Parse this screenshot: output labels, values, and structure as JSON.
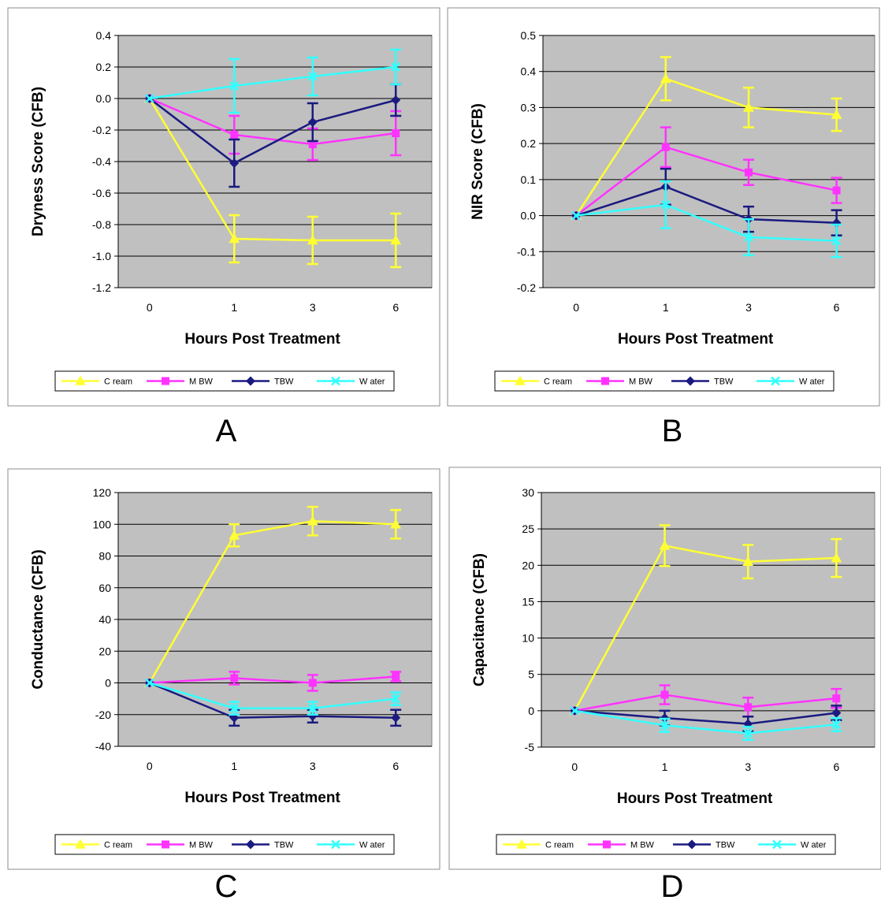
{
  "legend_entries": [
    "C ream",
    "M BW",
    "TBW",
    "W ater"
  ],
  "series_styles": [
    {
      "color": "#ffff33",
      "marker": "triangle"
    },
    {
      "color": "#ff33ff",
      "marker": "square"
    },
    {
      "color": "#1a1a80",
      "marker": "diamond"
    },
    {
      "color": "#33ffff",
      "marker": "x"
    }
  ],
  "plot_background": "#c0c0c0",
  "chart_data": [
    {
      "type": "line",
      "panel_label": "A",
      "xlabel": "Hours Post Treatment",
      "ylabel": "Dryness Score (CFB)",
      "x": [
        "0",
        "1",
        "3",
        "6"
      ],
      "ylim": [
        -1.2,
        0.4
      ],
      "yticks": [
        0.4,
        0.2,
        0.0,
        -0.2,
        -0.4,
        -0.6,
        -0.8,
        -1.0,
        -1.2
      ],
      "ytick_labels": [
        "0.4",
        "0.2",
        "0.0",
        "-0.2",
        "-0.4",
        "-0.6",
        "-0.8",
        "-1.0",
        "-1.2"
      ],
      "grid": true,
      "legend": "bottom",
      "series": [
        {
          "name": "C ream",
          "values": [
            0,
            -0.89,
            -0.9,
            -0.9
          ],
          "error": [
            0,
            0.15,
            0.15,
            0.17
          ]
        },
        {
          "name": "M BW",
          "values": [
            0,
            -0.23,
            -0.29,
            -0.22
          ],
          "error": [
            0,
            0.12,
            0.1,
            0.14
          ]
        },
        {
          "name": "TBW",
          "values": [
            0,
            -0.41,
            -0.15,
            -0.01
          ],
          "error": [
            0,
            0.15,
            0.12,
            0.1
          ]
        },
        {
          "name": "W ater",
          "values": [
            0,
            0.08,
            0.14,
            0.2
          ],
          "error": [
            0,
            0.17,
            0.12,
            0.11
          ]
        }
      ]
    },
    {
      "type": "line",
      "panel_label": "B",
      "xlabel": "Hours Post Treatment",
      "ylabel": "NIR Score (CFB)",
      "x": [
        "0",
        "1",
        "3",
        "6"
      ],
      "ylim": [
        -0.2,
        0.5
      ],
      "yticks": [
        0.5,
        0.4,
        0.3,
        0.2,
        0.1,
        0.0,
        -0.1,
        -0.2
      ],
      "ytick_labels": [
        "0.5",
        "0.4",
        "0.3",
        "0.2",
        "0.1",
        "0.0",
        "-0.1",
        "-0.2"
      ],
      "grid": true,
      "legend": "bottom",
      "series": [
        {
          "name": "C ream",
          "values": [
            0,
            0.38,
            0.3,
            0.28
          ],
          "error": [
            0,
            0.06,
            0.055,
            0.045
          ]
        },
        {
          "name": "M BW",
          "values": [
            0,
            0.19,
            0.12,
            0.07
          ],
          "error": [
            0,
            0.055,
            0.035,
            0.035
          ]
        },
        {
          "name": "TBW",
          "values": [
            0,
            0.08,
            -0.01,
            -0.02
          ],
          "error": [
            0,
            0.05,
            0.035,
            0.035
          ]
        },
        {
          "name": "W ater",
          "values": [
            0,
            0.03,
            -0.06,
            -0.07
          ],
          "error": [
            0,
            0.065,
            0.05,
            0.045
          ]
        }
      ]
    },
    {
      "type": "line",
      "panel_label": "C",
      "xlabel": "Hours Post Treatment",
      "ylabel": "Conductance (CFB)",
      "x": [
        "0",
        "1",
        "3",
        "6"
      ],
      "ylim": [
        -40,
        120
      ],
      "yticks": [
        120,
        100,
        80,
        60,
        40,
        20,
        0,
        -20,
        -40
      ],
      "ytick_labels": [
        "120",
        "100",
        "80",
        "60",
        "40",
        "20",
        "0",
        "-20",
        "-40"
      ],
      "grid": true,
      "legend": "bottom",
      "series": [
        {
          "name": "C ream",
          "values": [
            0,
            93,
            102,
            100
          ],
          "error": [
            0,
            7,
            9,
            9
          ]
        },
        {
          "name": "M BW",
          "values": [
            0,
            3,
            0,
            4
          ],
          "error": [
            0,
            4,
            5,
            3
          ]
        },
        {
          "name": "TBW",
          "values": [
            0,
            -22,
            -21,
            -22
          ],
          "error": [
            0,
            5,
            4,
            5
          ]
        },
        {
          "name": "W ater",
          "values": [
            0,
            -16,
            -16,
            -10
          ],
          "error": [
            0,
            4,
            4,
            4
          ]
        }
      ]
    },
    {
      "type": "line",
      "panel_label": "D",
      "xlabel": "Hours Post Treatment",
      "ylabel": "Capacitance (CFB)",
      "x": [
        "0",
        "1",
        "3",
        "6"
      ],
      "ylim": [
        -5,
        30
      ],
      "yticks": [
        30,
        25,
        20,
        15,
        10,
        5,
        0,
        -5
      ],
      "ytick_labels": [
        "30",
        "25",
        "20",
        "15",
        "10",
        "5",
        "0",
        "-5"
      ],
      "grid": true,
      "legend": "bottom",
      "series": [
        {
          "name": "C ream",
          "values": [
            0,
            22.7,
            20.5,
            21.0
          ],
          "error": [
            0,
            2.8,
            2.3,
            2.6
          ]
        },
        {
          "name": "M BW",
          "values": [
            0,
            2.2,
            0.5,
            1.7
          ],
          "error": [
            0,
            1.3,
            1.3,
            1.3
          ]
        },
        {
          "name": "TBW",
          "values": [
            0,
            -1.0,
            -1.8,
            -0.3
          ],
          "error": [
            0,
            1.0,
            1.0,
            1.0
          ]
        },
        {
          "name": "W ater",
          "values": [
            0,
            -2.0,
            -3.1,
            -1.9
          ],
          "error": [
            0,
            0.9,
            0.9,
            0.9
          ]
        }
      ]
    }
  ]
}
